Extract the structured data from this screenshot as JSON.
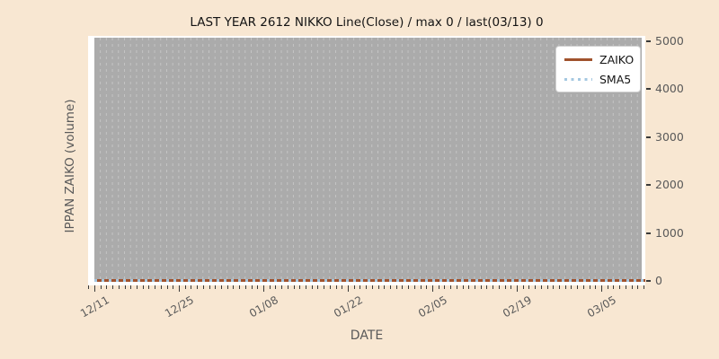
{
  "title": "LAST YEAR 2612 NIKKO Line(Close) / max 0 / last(03/13) 0",
  "axes": {
    "xlabel": "DATE",
    "ylabel": "IPPAN ZAIKO (volume)",
    "x_tick_labels": [
      "12/11",
      "12/25",
      "01/08",
      "01/22",
      "02/05",
      "02/19",
      "03/05"
    ],
    "y_tick_labels": [
      "0",
      "1000",
      "2000",
      "3000",
      "4000",
      "5000"
    ]
  },
  "legend": {
    "items": [
      {
        "label": "ZAIKO",
        "style": "solid",
        "color": "#a0522d"
      },
      {
        "label": "SMA5",
        "style": "dotted",
        "color": "#a5c8e1"
      }
    ]
  },
  "colors": {
    "figure_background": "#f8e7d2",
    "axes_background": "#ffffff",
    "plot_fill": "#ababab",
    "gridline": "#c4c4c4",
    "zaiko_line": "#a0522d",
    "sma5_line": "#a5c8e1",
    "tick_text": "#595959",
    "title_text": "#141414"
  },
  "chart_data": {
    "type": "line",
    "title": "LAST YEAR 2612 NIKKO Line(Close) / max 0 / last(03/13) 0",
    "xlabel": "DATE",
    "ylabel": "IPPAN ZAIKO (volume)",
    "categories": [
      "12/11",
      "12/25",
      "01/08",
      "01/22",
      "02/05",
      "02/19",
      "03/05"
    ],
    "series": [
      {
        "name": "ZAIKO",
        "style": "solid line",
        "color": "#a0522d",
        "values": [
          0,
          0,
          0,
          0,
          0,
          0,
          0
        ]
      },
      {
        "name": "SMA5",
        "style": "dotted line",
        "color": "#a5c8e1",
        "values": [
          0,
          0,
          0,
          0,
          0,
          0,
          0
        ]
      }
    ],
    "values_note": "Both series are flat at 0 across the entire date range; max 0, last value on 03/13 is 0",
    "ylim": [
      0,
      5000
    ],
    "y_ticks": [
      0,
      1000,
      2000,
      3000,
      4000,
      5000
    ],
    "y_axis_side": "right",
    "grid": "vertical dashed daily gridlines on gray plot background",
    "legend_position": "upper right"
  }
}
